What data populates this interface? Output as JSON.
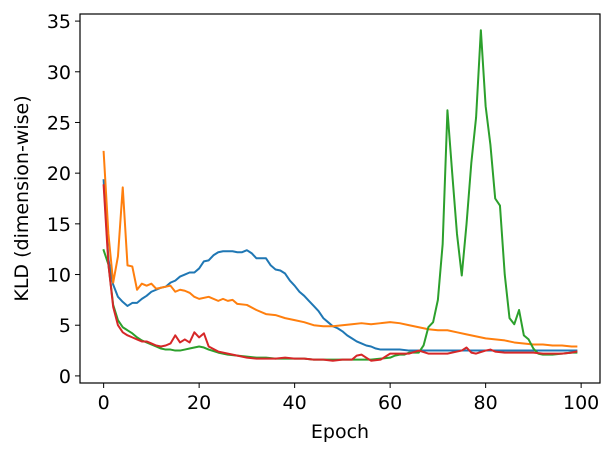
{
  "chart_data": {
    "type": "line",
    "xlabel": "Epoch",
    "ylabel": "KLD (dimension-wise)",
    "xlim": [
      -4.95,
      103.95
    ],
    "ylim": [
      -0.7,
      35.7
    ],
    "xticks": [
      0,
      20,
      40,
      60,
      80,
      100
    ],
    "yticks": [
      0,
      5,
      10,
      15,
      20,
      25,
      30,
      35
    ],
    "grid": false,
    "legend": "none",
    "series": [
      {
        "color": "#1f77b4",
        "x": [
          0,
          1,
          2,
          3,
          4,
          5,
          6,
          7,
          8,
          9,
          10,
          11,
          12,
          13,
          14,
          15,
          16,
          17,
          18,
          19,
          20,
          21,
          22,
          23,
          24,
          25,
          26,
          27,
          28,
          29,
          30,
          31,
          32,
          33,
          34,
          35,
          36,
          37,
          38,
          39,
          40,
          41,
          42,
          43,
          44,
          45,
          46,
          47,
          48,
          49,
          50,
          51,
          52,
          53,
          54,
          55,
          56,
          57,
          58,
          59,
          60,
          62,
          64,
          66,
          68,
          70,
          72,
          74,
          76,
          78,
          80,
          82,
          84,
          86,
          88,
          90,
          92,
          94,
          96,
          98,
          99
        ],
        "y": [
          19.3,
          11.5,
          9.0,
          7.8,
          7.3,
          6.9,
          7.2,
          7.2,
          7.6,
          7.9,
          8.3,
          8.5,
          8.7,
          8.8,
          9.2,
          9.4,
          9.8,
          10.0,
          10.2,
          10.2,
          10.6,
          11.3,
          11.4,
          11.9,
          12.2,
          12.3,
          12.3,
          12.3,
          12.2,
          12.2,
          12.4,
          12.1,
          11.6,
          11.6,
          11.6,
          10.9,
          10.5,
          10.4,
          10.1,
          9.4,
          8.9,
          8.3,
          7.9,
          7.4,
          6.9,
          6.4,
          5.7,
          5.3,
          4.9,
          4.7,
          4.4,
          4.0,
          3.7,
          3.4,
          3.2,
          3.0,
          2.9,
          2.7,
          2.6,
          2.6,
          2.6,
          2.6,
          2.5,
          2.5,
          2.5,
          2.5,
          2.5,
          2.5,
          2.5,
          2.5,
          2.5,
          2.5,
          2.5,
          2.5,
          2.5,
          2.5,
          2.5,
          2.5,
          2.5,
          2.5,
          2.5
        ]
      },
      {
        "color": "#ff7f0e",
        "x": [
          0,
          1,
          2,
          3,
          4,
          5,
          6,
          7,
          8,
          9,
          10,
          11,
          12,
          13,
          14,
          15,
          16,
          17,
          18,
          19,
          20,
          22,
          24,
          25,
          26,
          27,
          28,
          30,
          32,
          34,
          36,
          38,
          40,
          42,
          44,
          46,
          48,
          50,
          52,
          54,
          56,
          58,
          60,
          62,
          64,
          66,
          68,
          70,
          72,
          74,
          76,
          78,
          80,
          82,
          84,
          86,
          88,
          90,
          92,
          94,
          96,
          98,
          99
        ],
        "y": [
          22.1,
          14.0,
          9.2,
          11.8,
          18.6,
          10.9,
          10.8,
          8.5,
          9.1,
          8.9,
          9.1,
          8.6,
          8.7,
          8.8,
          8.9,
          8.3,
          8.5,
          8.4,
          8.2,
          7.8,
          7.6,
          7.8,
          7.4,
          7.6,
          7.4,
          7.5,
          7.1,
          7.0,
          6.5,
          6.1,
          6.0,
          5.7,
          5.5,
          5.3,
          5.0,
          4.9,
          4.9,
          5.0,
          5.1,
          5.2,
          5.1,
          5.2,
          5.3,
          5.2,
          5.0,
          4.8,
          4.6,
          4.5,
          4.5,
          4.3,
          4.1,
          3.9,
          3.7,
          3.6,
          3.5,
          3.3,
          3.2,
          3.1,
          3.1,
          3.0,
          3.0,
          2.9,
          2.9
        ]
      },
      {
        "color": "#2ca02c",
        "x": [
          0,
          1,
          2,
          3,
          4,
          5,
          6,
          7,
          8,
          9,
          10,
          11,
          12,
          13,
          14,
          15,
          16,
          17,
          18,
          19,
          20,
          21,
          22,
          24,
          26,
          28,
          30,
          32,
          34,
          36,
          38,
          40,
          42,
          44,
          46,
          48,
          50,
          52,
          54,
          56,
          58,
          60,
          61,
          62,
          63,
          64,
          65,
          66,
          67,
          68,
          69,
          70,
          71,
          72,
          73,
          74,
          75,
          76,
          77,
          78,
          79,
          80,
          81,
          82,
          83,
          84,
          85,
          86,
          87,
          88,
          89,
          90,
          91,
          92,
          94,
          96,
          98,
          99
        ],
        "y": [
          12.4,
          11.0,
          7.0,
          5.5,
          4.8,
          4.5,
          4.2,
          3.8,
          3.5,
          3.3,
          3.1,
          2.9,
          2.7,
          2.6,
          2.6,
          2.5,
          2.5,
          2.6,
          2.7,
          2.8,
          2.9,
          2.8,
          2.6,
          2.3,
          2.1,
          2.0,
          1.9,
          1.8,
          1.8,
          1.7,
          1.7,
          1.7,
          1.7,
          1.6,
          1.6,
          1.6,
          1.6,
          1.6,
          1.6,
          1.6,
          1.7,
          1.8,
          2.0,
          2.1,
          2.1,
          2.3,
          2.3,
          2.3,
          3.0,
          4.8,
          5.3,
          7.5,
          13.0,
          26.2,
          20.0,
          14.0,
          9.9,
          15.0,
          21.0,
          25.5,
          34.1,
          26.6,
          22.8,
          17.5,
          16.8,
          10.0,
          5.7,
          5.1,
          6.5,
          4.0,
          3.6,
          2.7,
          2.2,
          2.1,
          2.1,
          2.2,
          2.3,
          2.3
        ]
      },
      {
        "color": "#d62728",
        "x": [
          0,
          1,
          2,
          3,
          4,
          5,
          6,
          7,
          8,
          9,
          10,
          11,
          12,
          13,
          14,
          15,
          16,
          17,
          18,
          19,
          20,
          21,
          22,
          24,
          26,
          28,
          30,
          32,
          34,
          36,
          38,
          40,
          42,
          44,
          46,
          48,
          50,
          52,
          53,
          54,
          55,
          56,
          58,
          60,
          62,
          64,
          66,
          68,
          70,
          72,
          74,
          75,
          76,
          77,
          78,
          80,
          81,
          82,
          84,
          86,
          88,
          90,
          92,
          94,
          96,
          98,
          99
        ],
        "y": [
          18.8,
          11.0,
          6.8,
          5.0,
          4.3,
          4.0,
          3.8,
          3.6,
          3.4,
          3.4,
          3.2,
          3.0,
          2.9,
          3.0,
          3.2,
          4.0,
          3.3,
          3.6,
          3.3,
          4.3,
          3.8,
          4.2,
          2.9,
          2.4,
          2.2,
          2.0,
          1.8,
          1.7,
          1.7,
          1.7,
          1.8,
          1.7,
          1.7,
          1.6,
          1.6,
          1.5,
          1.6,
          1.6,
          2.0,
          2.1,
          1.8,
          1.5,
          1.6,
          2.2,
          2.2,
          2.2,
          2.5,
          2.2,
          2.2,
          2.2,
          2.4,
          2.5,
          2.8,
          2.3,
          2.2,
          2.5,
          2.6,
          2.4,
          2.3,
          2.3,
          2.3,
          2.3,
          2.2,
          2.2,
          2.2,
          2.3,
          2.4
        ]
      }
    ]
  }
}
